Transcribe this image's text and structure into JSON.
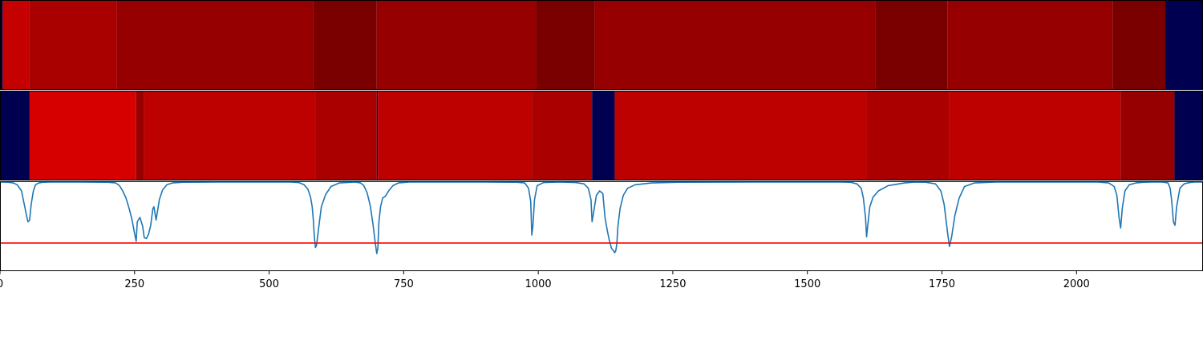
{
  "chart_data": [
    {
      "type": "heatmap",
      "panel": "top-color-strip",
      "xlim": [
        0,
        2235
      ],
      "segments": [
        {
          "x0": 0,
          "x1": 5,
          "color": "#000050"
        },
        {
          "x0": 5,
          "x1": 55,
          "color": "#c40000"
        },
        {
          "x0": 55,
          "x1": 217,
          "color": "#a90000"
        },
        {
          "x0": 217,
          "x1": 582,
          "color": "#960000"
        },
        {
          "x0": 582,
          "x1": 700,
          "color": "#7a0000"
        },
        {
          "x0": 700,
          "x1": 996,
          "color": "#960000"
        },
        {
          "x0": 996,
          "x1": 1105,
          "color": "#7a0000"
        },
        {
          "x0": 1105,
          "x1": 1627,
          "color": "#960000"
        },
        {
          "x0": 1627,
          "x1": 1760,
          "color": "#7a0000"
        },
        {
          "x0": 1760,
          "x1": 2067,
          "color": "#960000"
        },
        {
          "x0": 2067,
          "x1": 2165,
          "color": "#7a0000"
        },
        {
          "x0": 2165,
          "x1": 2235,
          "color": "#000050"
        }
      ]
    },
    {
      "type": "heatmap",
      "panel": "middle-color-strip",
      "xlim": [
        0,
        2235
      ],
      "segments": [
        {
          "x0": 0,
          "x1": 55,
          "color": "#000050"
        },
        {
          "x0": 55,
          "x1": 253,
          "color": "#d70000"
        },
        {
          "x0": 253,
          "x1": 268,
          "color": "#960000"
        },
        {
          "x0": 268,
          "x1": 587,
          "color": "#bd0000"
        },
        {
          "x0": 587,
          "x1": 700,
          "color": "#ab0000"
        },
        {
          "x0": 700,
          "x1": 702,
          "color": "#000050"
        },
        {
          "x0": 702,
          "x1": 988,
          "color": "#bd0000"
        },
        {
          "x0": 988,
          "x1": 1100,
          "color": "#ab0000"
        },
        {
          "x0": 1100,
          "x1": 1142,
          "color": "#000050"
        },
        {
          "x0": 1142,
          "x1": 1610,
          "color": "#bd0000"
        },
        {
          "x0": 1610,
          "x1": 1764,
          "color": "#ab0000"
        },
        {
          "x0": 1764,
          "x1": 2082,
          "color": "#bd0000"
        },
        {
          "x0": 2082,
          "x1": 2182,
          "color": "#960000"
        },
        {
          "x0": 2182,
          "x1": 2235,
          "color": "#000050"
        }
      ]
    },
    {
      "type": "line",
      "panel": "signal-line",
      "xlim": [
        0,
        2235
      ],
      "ylim": [
        0,
        1
      ],
      "grid": false,
      "threshold": 0.31,
      "threshold_color": "#ff0000",
      "line_color": "#1f77b4",
      "xticks": [
        0,
        250,
        500,
        750,
        1000,
        1250,
        1500,
        1750,
        2000
      ],
      "xtick_labels": [
        "0",
        "250",
        "500",
        "750",
        "1000",
        "1250",
        "1500",
        "1750",
        "2000"
      ],
      "series": [
        {
          "x": [
            0,
            15,
            25,
            32,
            40,
            45,
            50,
            52,
            55,
            58,
            62,
            66,
            72,
            80,
            95,
            150,
            200,
            215,
            222,
            228,
            234,
            240,
            245,
            250,
            253,
            255,
            260,
            265,
            268,
            272,
            276,
            280,
            284,
            286,
            290,
            296,
            302,
            310,
            320,
            340,
            400,
            540,
            555,
            565,
            572,
            577,
            580,
            582,
            584,
            586,
            588,
            592,
            597,
            605,
            615,
            630,
            660,
            670,
            676,
            682,
            688,
            693,
            697,
            700,
            702,
            704,
            707,
            711,
            716,
            722,
            730,
            740,
            760,
            800,
            900,
            960,
            975,
            982,
            986,
            988,
            990,
            993,
            998,
            1010,
            1040,
            1070,
            1085,
            1093,
            1098,
            1100,
            1104,
            1108,
            1114,
            1120,
            1124,
            1128,
            1132,
            1136,
            1140,
            1142,
            1144,
            1146,
            1148,
            1152,
            1158,
            1166,
            1180,
            1210,
            1260,
            1400,
            1560,
            1580,
            1592,
            1600,
            1604,
            1608,
            1610,
            1612,
            1616,
            1622,
            1632,
            1650,
            1680,
            1700,
            1720,
            1738,
            1748,
            1754,
            1758,
            1761,
            1764,
            1768,
            1774,
            1782,
            1792,
            1810,
            1850,
            1950,
            2040,
            2060,
            2070,
            2075,
            2079,
            2082,
            2085,
            2090,
            2098,
            2110,
            2125,
            2140,
            2160,
            2170,
            2174,
            2177,
            2180,
            2183,
            2186,
            2192,
            2200,
            2210,
            2220,
            2235
          ],
          "y": [
            1.0,
            0.998,
            0.99,
            0.97,
            0.9,
            0.75,
            0.6,
            0.55,
            0.57,
            0.75,
            0.9,
            0.97,
            0.99,
            0.998,
            1.0,
            1.0,
            0.998,
            0.99,
            0.96,
            0.9,
            0.82,
            0.7,
            0.58,
            0.42,
            0.33,
            0.55,
            0.6,
            0.5,
            0.37,
            0.36,
            0.41,
            0.51,
            0.7,
            0.72,
            0.57,
            0.8,
            0.91,
            0.97,
            0.99,
            0.998,
            1.0,
            1.0,
            0.995,
            0.97,
            0.92,
            0.83,
            0.72,
            0.58,
            0.38,
            0.26,
            0.28,
            0.48,
            0.72,
            0.86,
            0.95,
            0.99,
            1.0,
            0.99,
            0.96,
            0.88,
            0.73,
            0.52,
            0.32,
            0.19,
            0.25,
            0.55,
            0.72,
            0.82,
            0.84,
            0.9,
            0.96,
            0.99,
            1.0,
            1.0,
            1.0,
            0.998,
            0.99,
            0.93,
            0.78,
            0.4,
            0.5,
            0.8,
            0.96,
            0.995,
            1.0,
            0.995,
            0.98,
            0.93,
            0.8,
            0.55,
            0.7,
            0.85,
            0.9,
            0.87,
            0.6,
            0.46,
            0.34,
            0.25,
            0.22,
            0.2,
            0.22,
            0.3,
            0.5,
            0.7,
            0.85,
            0.93,
            0.97,
            0.99,
            0.998,
            1.0,
            1.0,
            0.998,
            0.98,
            0.93,
            0.82,
            0.6,
            0.38,
            0.5,
            0.72,
            0.83,
            0.9,
            0.96,
            0.99,
            1.0,
            0.998,
            0.98,
            0.9,
            0.75,
            0.55,
            0.4,
            0.27,
            0.38,
            0.62,
            0.82,
            0.95,
            0.99,
            1.0,
            1.0,
            1.0,
            0.99,
            0.95,
            0.85,
            0.6,
            0.48,
            0.7,
            0.9,
            0.97,
            0.99,
            0.998,
            1.0,
            1.0,
            0.99,
            0.93,
            0.78,
            0.55,
            0.51,
            0.72,
            0.93,
            0.98,
            0.995,
            1.0,
            1.0
          ]
        }
      ]
    }
  ]
}
